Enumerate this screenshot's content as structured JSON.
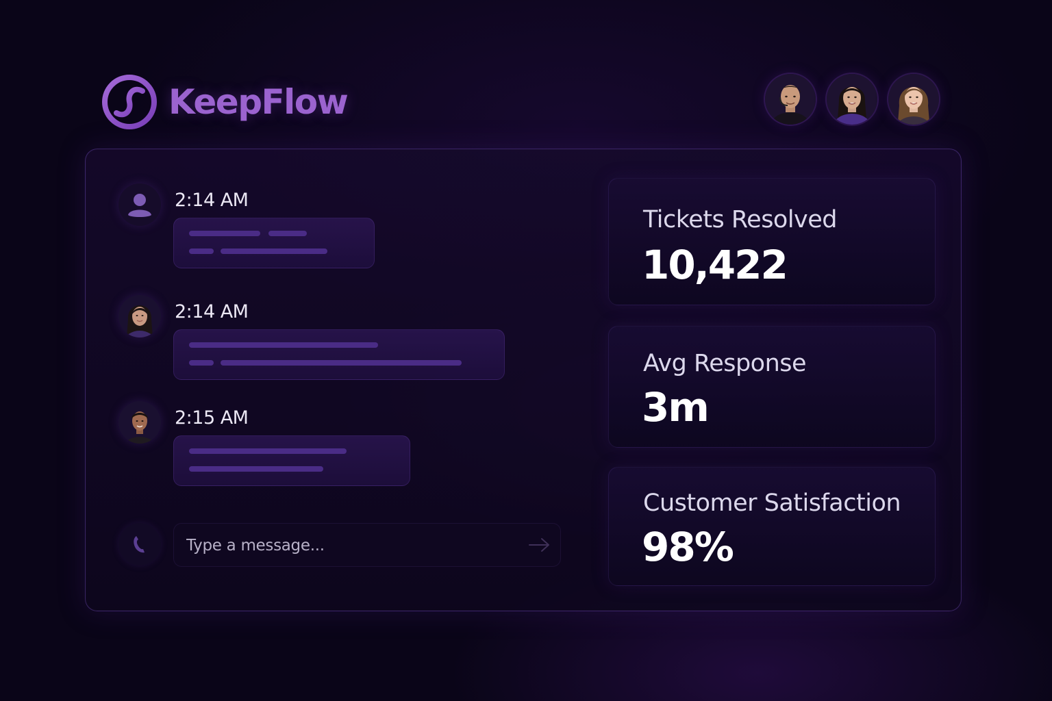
{
  "brand": {
    "name": "KeepFlow",
    "color": "#9b63cf",
    "logo_icon": "s-curve-circle-logo"
  },
  "team": {
    "members": [
      {
        "icon": "avatar-man-headset"
      },
      {
        "icon": "avatar-woman-dark-hair"
      },
      {
        "icon": "avatar-woman-light-hair"
      }
    ]
  },
  "chat": {
    "messages": [
      {
        "time": "2:14 AM",
        "avatar_icon": "generic-user-icon"
      },
      {
        "time": "2:14 AM",
        "avatar_icon": "avatar-woman"
      },
      {
        "time": "2:15 AM",
        "avatar_icon": "avatar-man"
      }
    ],
    "composer": {
      "placeholder": "Type a message...",
      "left_icon": "phone-icon",
      "send_icon": "arrow-right-icon"
    }
  },
  "stats": [
    {
      "label": "Tickets Resolved",
      "value": "10,422"
    },
    {
      "label": "Avg Response",
      "value": "3m"
    },
    {
      "label": "Customer Satisfaction",
      "value": "98%"
    }
  ],
  "colors": {
    "background": "#0a0518",
    "accent": "#9b63cf",
    "bubble_line": "#4a2c86"
  }
}
